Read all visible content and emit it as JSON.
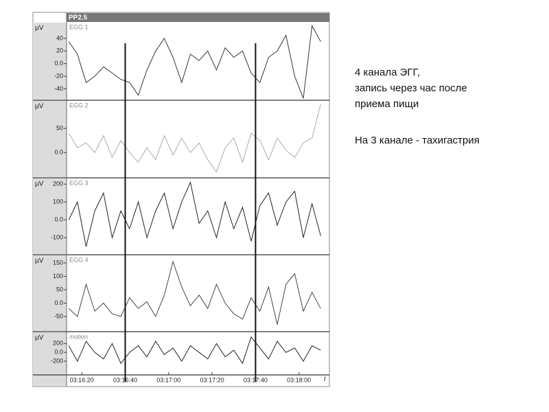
{
  "header": "PP2.5",
  "markers": [
    11800,
    11860
  ],
  "notes": [
    "4 канала ЭГГ,",
    "запись через час после",
    "приема пищи",
    "На 3 канале - тахигастрия"
  ],
  "chart_data": [
    {
      "type": "line",
      "title": "EGG 1",
      "ylabel": "µV",
      "color": "#333333",
      "x": [
        11774,
        11778,
        11782,
        11786,
        11790,
        11794,
        11798,
        11802,
        11806,
        11810,
        11814,
        11818,
        11822,
        11826,
        11830,
        11834,
        11838,
        11842,
        11846,
        11850,
        11854,
        11858,
        11862,
        11866,
        11870,
        11874,
        11878,
        11882,
        11886,
        11890
      ],
      "values": [
        35,
        15,
        -30,
        -20,
        -5,
        -15,
        -25,
        -30,
        -50,
        -10,
        20,
        40,
        10,
        -30,
        15,
        5,
        20,
        -10,
        25,
        10,
        20,
        -15,
        -30,
        10,
        20,
        45,
        -20,
        -55,
        60,
        35
      ],
      "xlim": [
        11773,
        11894
      ],
      "ylim": [
        -57,
        65
      ],
      "yticks": [
        40,
        20,
        {
          "value": 0,
          "label": "0.0"
        },
        -20,
        -40
      ]
    },
    {
      "type": "line",
      "title": "EGG 2",
      "ylabel": "µV",
      "color": "#aaaaaa",
      "x": [
        11774,
        11778,
        11782,
        11786,
        11790,
        11794,
        11798,
        11802,
        11806,
        11810,
        11814,
        11818,
        11822,
        11826,
        11830,
        11834,
        11838,
        11842,
        11846,
        11850,
        11854,
        11858,
        11862,
        11866,
        11870,
        11874,
        11878,
        11882,
        11886,
        11890
      ],
      "values": [
        40,
        10,
        20,
        0,
        35,
        -10,
        25,
        0,
        -20,
        10,
        -15,
        35,
        -5,
        30,
        0,
        20,
        -15,
        -40,
        10,
        30,
        -20,
        40,
        25,
        -15,
        30,
        5,
        -10,
        20,
        30,
        100
      ],
      "xlim": [
        11773,
        11894
      ],
      "ylim": [
        -51,
        107
      ],
      "yticks": [
        50,
        {
          "value": 0,
          "label": "0.0"
        }
      ]
    },
    {
      "type": "line",
      "title": "EGG 3",
      "ylabel": "µV",
      "color": "#222222",
      "x": [
        11774,
        11778,
        11782,
        11786,
        11790,
        11794,
        11798,
        11802,
        11806,
        11810,
        11814,
        11818,
        11822,
        11826,
        11830,
        11834,
        11838,
        11842,
        11846,
        11850,
        11854,
        11858,
        11862,
        11866,
        11870,
        11874,
        11878,
        11882,
        11886,
        11890
      ],
      "values": [
        0,
        100,
        -150,
        50,
        150,
        -100,
        50,
        -50,
        100,
        -100,
        50,
        150,
        -50,
        100,
        210,
        -20,
        50,
        -100,
        100,
        -50,
        70,
        -120,
        80,
        150,
        -30,
        100,
        160,
        -100,
        90,
        -90
      ],
      "xlim": [
        11773,
        11894
      ],
      "ylim": [
        -192,
        231
      ],
      "yticks": [
        200,
        100,
        {
          "value": 0,
          "label": "0.0"
        },
        -100
      ]
    },
    {
      "type": "line",
      "title": "EGG 4",
      "ylabel": "µV",
      "color": "#444444",
      "x": [
        11774,
        11778,
        11782,
        11786,
        11790,
        11794,
        11798,
        11802,
        11806,
        11810,
        11814,
        11818,
        11822,
        11826,
        11830,
        11834,
        11838,
        11842,
        11846,
        11850,
        11854,
        11858,
        11862,
        11866,
        11870,
        11874,
        11878,
        11882,
        11886,
        11890
      ],
      "values": [
        -20,
        -50,
        70,
        -30,
        0,
        -40,
        -50,
        20,
        -20,
        5,
        -50,
        30,
        155,
        60,
        -10,
        30,
        -20,
        70,
        0,
        -40,
        -60,
        20,
        -30,
        60,
        -80,
        70,
        110,
        -30,
        40,
        -20
      ],
      "xlim": [
        11773,
        11894
      ],
      "ylim": [
        -104,
        178
      ],
      "yticks": [
        150,
        100,
        50,
        {
          "value": 0,
          "label": "0.0"
        },
        -50
      ]
    },
    {
      "type": "line",
      "title": "motion",
      "ylabel": "µV",
      "xlabel": "t",
      "color": "#222222",
      "x": [
        11774,
        11778,
        11782,
        11786,
        11790,
        11794,
        11798,
        11802,
        11806,
        11810,
        11814,
        11818,
        11822,
        11826,
        11830,
        11834,
        11838,
        11842,
        11846,
        11850,
        11854,
        11858,
        11862,
        11866,
        11870,
        11874,
        11878,
        11882,
        11886,
        11890
      ],
      "values": [
        150,
        -200,
        250,
        0,
        -150,
        200,
        -250,
        0,
        150,
        -100,
        250,
        -50,
        100,
        -200,
        150,
        0,
        -150,
        200,
        -100,
        50,
        -250,
        350,
        100,
        -150,
        250,
        0,
        100,
        -200,
        150,
        50
      ],
      "xlim": [
        11773,
        11894
      ],
      "ylim": [
        -497,
        455
      ],
      "yticks": [
        200,
        {
          "value": 0,
          "label": "0.0"
        },
        -200
      ],
      "xticks": [
        {
          "value": 11780,
          "label": "03:16:20"
        },
        {
          "value": 11800,
          "label": "03:16:40"
        },
        {
          "value": 11820,
          "label": "03:17:00"
        },
        {
          "value": 11840,
          "label": "03:17:20"
        },
        {
          "value": 11860,
          "label": "03:17:40"
        },
        {
          "value": 11880,
          "label": "03:18:00"
        }
      ]
    }
  ]
}
